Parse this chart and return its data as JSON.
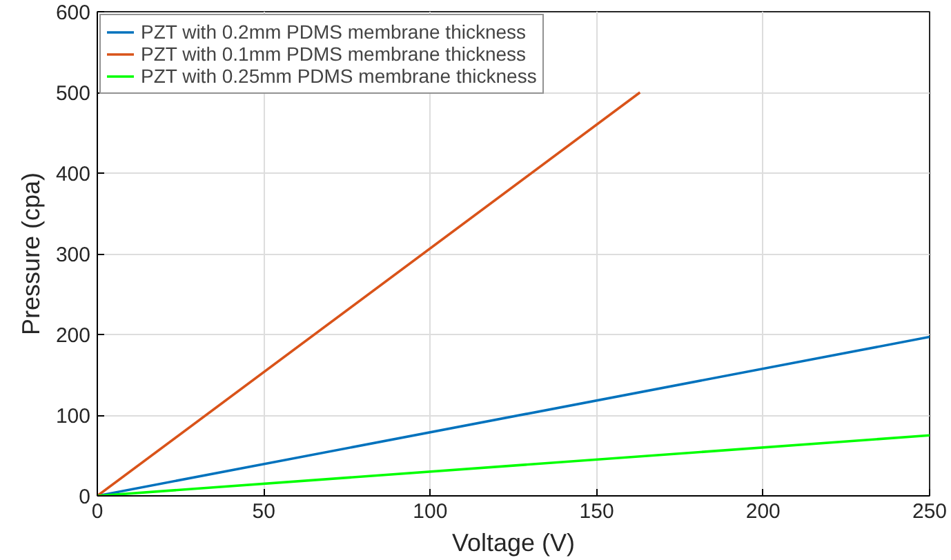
{
  "chart_data": {
    "type": "line",
    "xlabel": "Voltage (V)",
    "ylabel": "Pressure (cpa)",
    "series": [
      {
        "name": "PZT with 0.2mm PDMS membrane thickness",
        "color": "#0072bd",
        "x": [
          0,
          250
        ],
        "values": [
          0,
          197
        ]
      },
      {
        "name": "PZT with 0.1mm PDMS membrane thickness",
        "color": "#d95319",
        "x": [
          0,
          163
        ],
        "values": [
          0,
          500
        ]
      },
      {
        "name": "PZT with 0.25mm PDMS membrane thickness",
        "color": "#00ff00",
        "x": [
          0,
          250
        ],
        "values": [
          0,
          75
        ]
      }
    ],
    "xlim": [
      0,
      250
    ],
    "xticks": [
      0,
      50,
      100,
      150,
      200,
      250
    ],
    "ylim": [
      0,
      600
    ],
    "yticks": [
      0,
      100,
      200,
      300,
      400,
      500,
      600
    ],
    "grid": true,
    "legend": "top left",
    "line_style": "solid",
    "marker": "none"
  }
}
